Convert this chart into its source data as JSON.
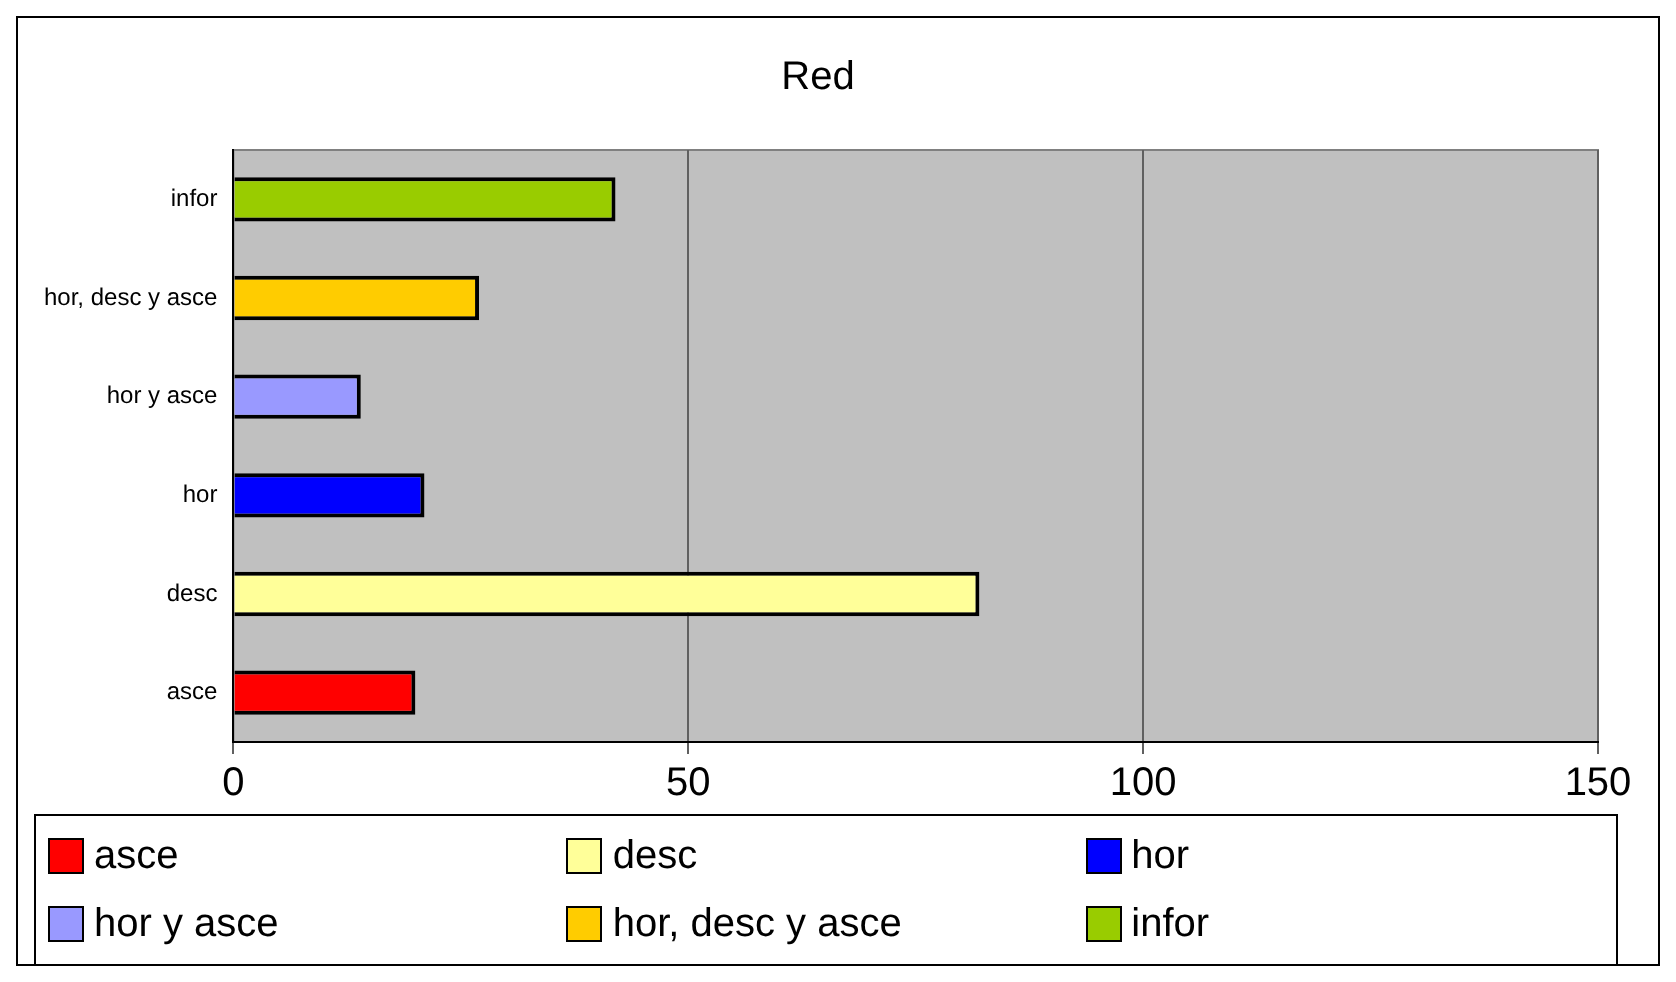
{
  "chart_data": {
    "type": "bar",
    "orientation": "horizontal",
    "title": "Red",
    "categories": [
      "infor",
      "hor, desc y asce",
      "hor y asce",
      "hor",
      "desc",
      "asce"
    ],
    "series": [
      {
        "name": "asce",
        "color": "#ff0000",
        "values": [
          null,
          null,
          null,
          null,
          null,
          20
        ]
      },
      {
        "name": "desc",
        "color": "#ffff99",
        "values": [
          null,
          null,
          null,
          null,
          82,
          null
        ]
      },
      {
        "name": "hor",
        "color": "#0000ff",
        "values": [
          null,
          null,
          null,
          21,
          null,
          null
        ]
      },
      {
        "name": "hor y asce",
        "color": "#9999ff",
        "values": [
          null,
          null,
          14,
          null,
          null,
          null
        ]
      },
      {
        "name": "hor, desc y asce",
        "color": "#ffcc00",
        "values": [
          null,
          27,
          null,
          null,
          null,
          null
        ]
      },
      {
        "name": "infor",
        "color": "#99cc00",
        "values": [
          42,
          null,
          null,
          null,
          null,
          null
        ]
      }
    ],
    "xlim": [
      0,
      150
    ],
    "xticks": [
      0,
      50,
      100,
      150
    ],
    "grid": "x",
    "legend": "bottom"
  }
}
